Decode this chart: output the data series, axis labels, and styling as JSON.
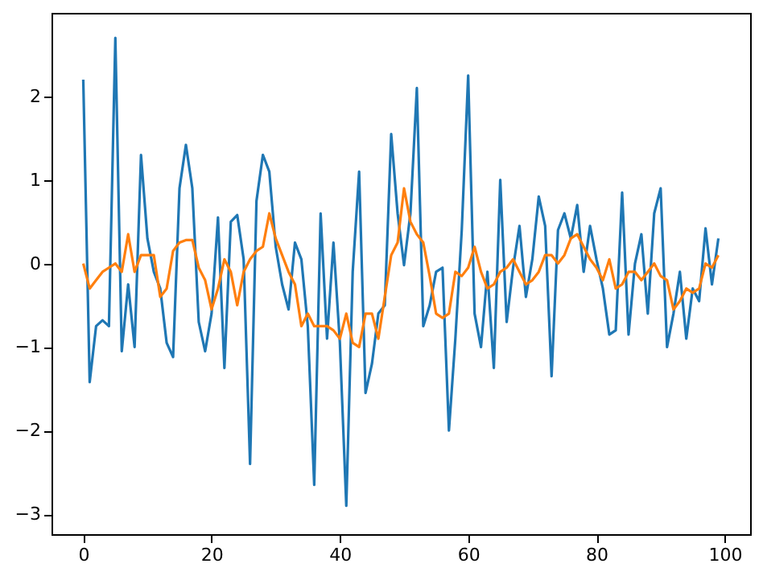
{
  "chart_data": {
    "type": "line",
    "x": [
      0,
      1,
      2,
      3,
      4,
      5,
      6,
      7,
      8,
      9,
      10,
      11,
      12,
      13,
      14,
      15,
      16,
      17,
      18,
      19,
      20,
      21,
      22,
      23,
      24,
      25,
      26,
      27,
      28,
      29,
      30,
      31,
      32,
      33,
      34,
      35,
      36,
      37,
      38,
      39,
      40,
      41,
      42,
      43,
      44,
      45,
      46,
      47,
      48,
      49,
      50,
      51,
      52,
      53,
      54,
      55,
      56,
      57,
      58,
      59,
      60,
      61,
      62,
      63,
      64,
      65,
      66,
      67,
      68,
      69,
      70,
      71,
      72,
      73,
      74,
      75,
      76,
      77,
      78,
      79,
      80,
      81,
      82,
      83,
      84,
      85,
      86,
      87,
      88,
      89,
      90,
      91,
      92,
      93,
      94,
      95,
      96,
      97,
      98,
      99
    ],
    "series": [
      {
        "color": "#1f77b4",
        "values": [
          2.2,
          -1.42,
          -0.75,
          -0.68,
          -0.75,
          2.7,
          -1.05,
          -0.25,
          -1.0,
          1.3,
          0.3,
          -0.1,
          -0.3,
          -0.95,
          -1.12,
          0.9,
          1.42,
          0.9,
          -0.7,
          -1.05,
          -0.6,
          0.55,
          -1.25,
          0.5,
          0.58,
          0.05,
          -2.4,
          0.75,
          1.3,
          1.1,
          0.2,
          -0.25,
          -0.55,
          0.25,
          0.05,
          -0.75,
          -2.65,
          0.6,
          -0.9,
          0.25,
          -0.95,
          -2.9,
          -0.1,
          1.1,
          -1.55,
          -1.2,
          -0.6,
          -0.5,
          1.55,
          0.6,
          -0.02,
          0.6,
          2.1,
          -0.75,
          -0.5,
          -0.1,
          -0.05,
          -2.0,
          -0.9,
          0.4,
          2.25,
          -0.6,
          -1.0,
          -0.1,
          -1.25,
          1.0,
          -0.7,
          -0.05,
          0.45,
          -0.4,
          0.05,
          0.8,
          0.45,
          -1.35,
          0.4,
          0.6,
          0.3,
          0.7,
          -0.1,
          0.45,
          0.05,
          -0.3,
          -0.85,
          -0.8,
          0.85,
          -0.85,
          0.0,
          0.35,
          -0.6,
          0.6,
          0.9,
          -1.0,
          -0.6,
          -0.1,
          -0.9,
          -0.3,
          -0.45,
          0.42,
          -0.25,
          0.3
        ]
      },
      {
        "color": "#ff7f0e",
        "values": [
          0.0,
          -0.3,
          -0.2,
          -0.1,
          -0.05,
          0.0,
          -0.1,
          0.35,
          -0.1,
          0.1,
          0.1,
          0.1,
          -0.4,
          -0.3,
          0.15,
          0.25,
          0.28,
          0.28,
          -0.05,
          -0.2,
          -0.55,
          -0.3,
          0.05,
          -0.1,
          -0.5,
          -0.1,
          0.05,
          0.15,
          0.2,
          0.6,
          0.3,
          0.1,
          -0.1,
          -0.25,
          -0.75,
          -0.6,
          -0.75,
          -0.75,
          -0.75,
          -0.8,
          -0.9,
          -0.6,
          -0.95,
          -1.0,
          -0.6,
          -0.6,
          -0.9,
          -0.4,
          0.1,
          0.25,
          0.9,
          0.5,
          0.35,
          0.25,
          -0.15,
          -0.6,
          -0.65,
          -0.6,
          -0.1,
          -0.15,
          -0.05,
          0.2,
          -0.1,
          -0.3,
          -0.25,
          -0.1,
          -0.05,
          0.05,
          -0.1,
          -0.25,
          -0.2,
          -0.1,
          0.1,
          0.1,
          0.0,
          0.1,
          0.3,
          0.35,
          0.2,
          0.05,
          -0.05,
          -0.2,
          0.05,
          -0.3,
          -0.25,
          -0.1,
          -0.1,
          -0.2,
          -0.1,
          0.0,
          -0.15,
          -0.2,
          -0.55,
          -0.45,
          -0.3,
          -0.35,
          -0.3,
          0.0,
          -0.05,
          0.1
        ]
      }
    ],
    "xlim": [
      -4.95,
      103.95
    ],
    "ylim": [
      -3.24,
      3.0
    ],
    "xticks": [
      0,
      20,
      40,
      60,
      80,
      100
    ],
    "yticks": [
      -3,
      -2,
      -1,
      0,
      1,
      2
    ],
    "grid": false
  }
}
